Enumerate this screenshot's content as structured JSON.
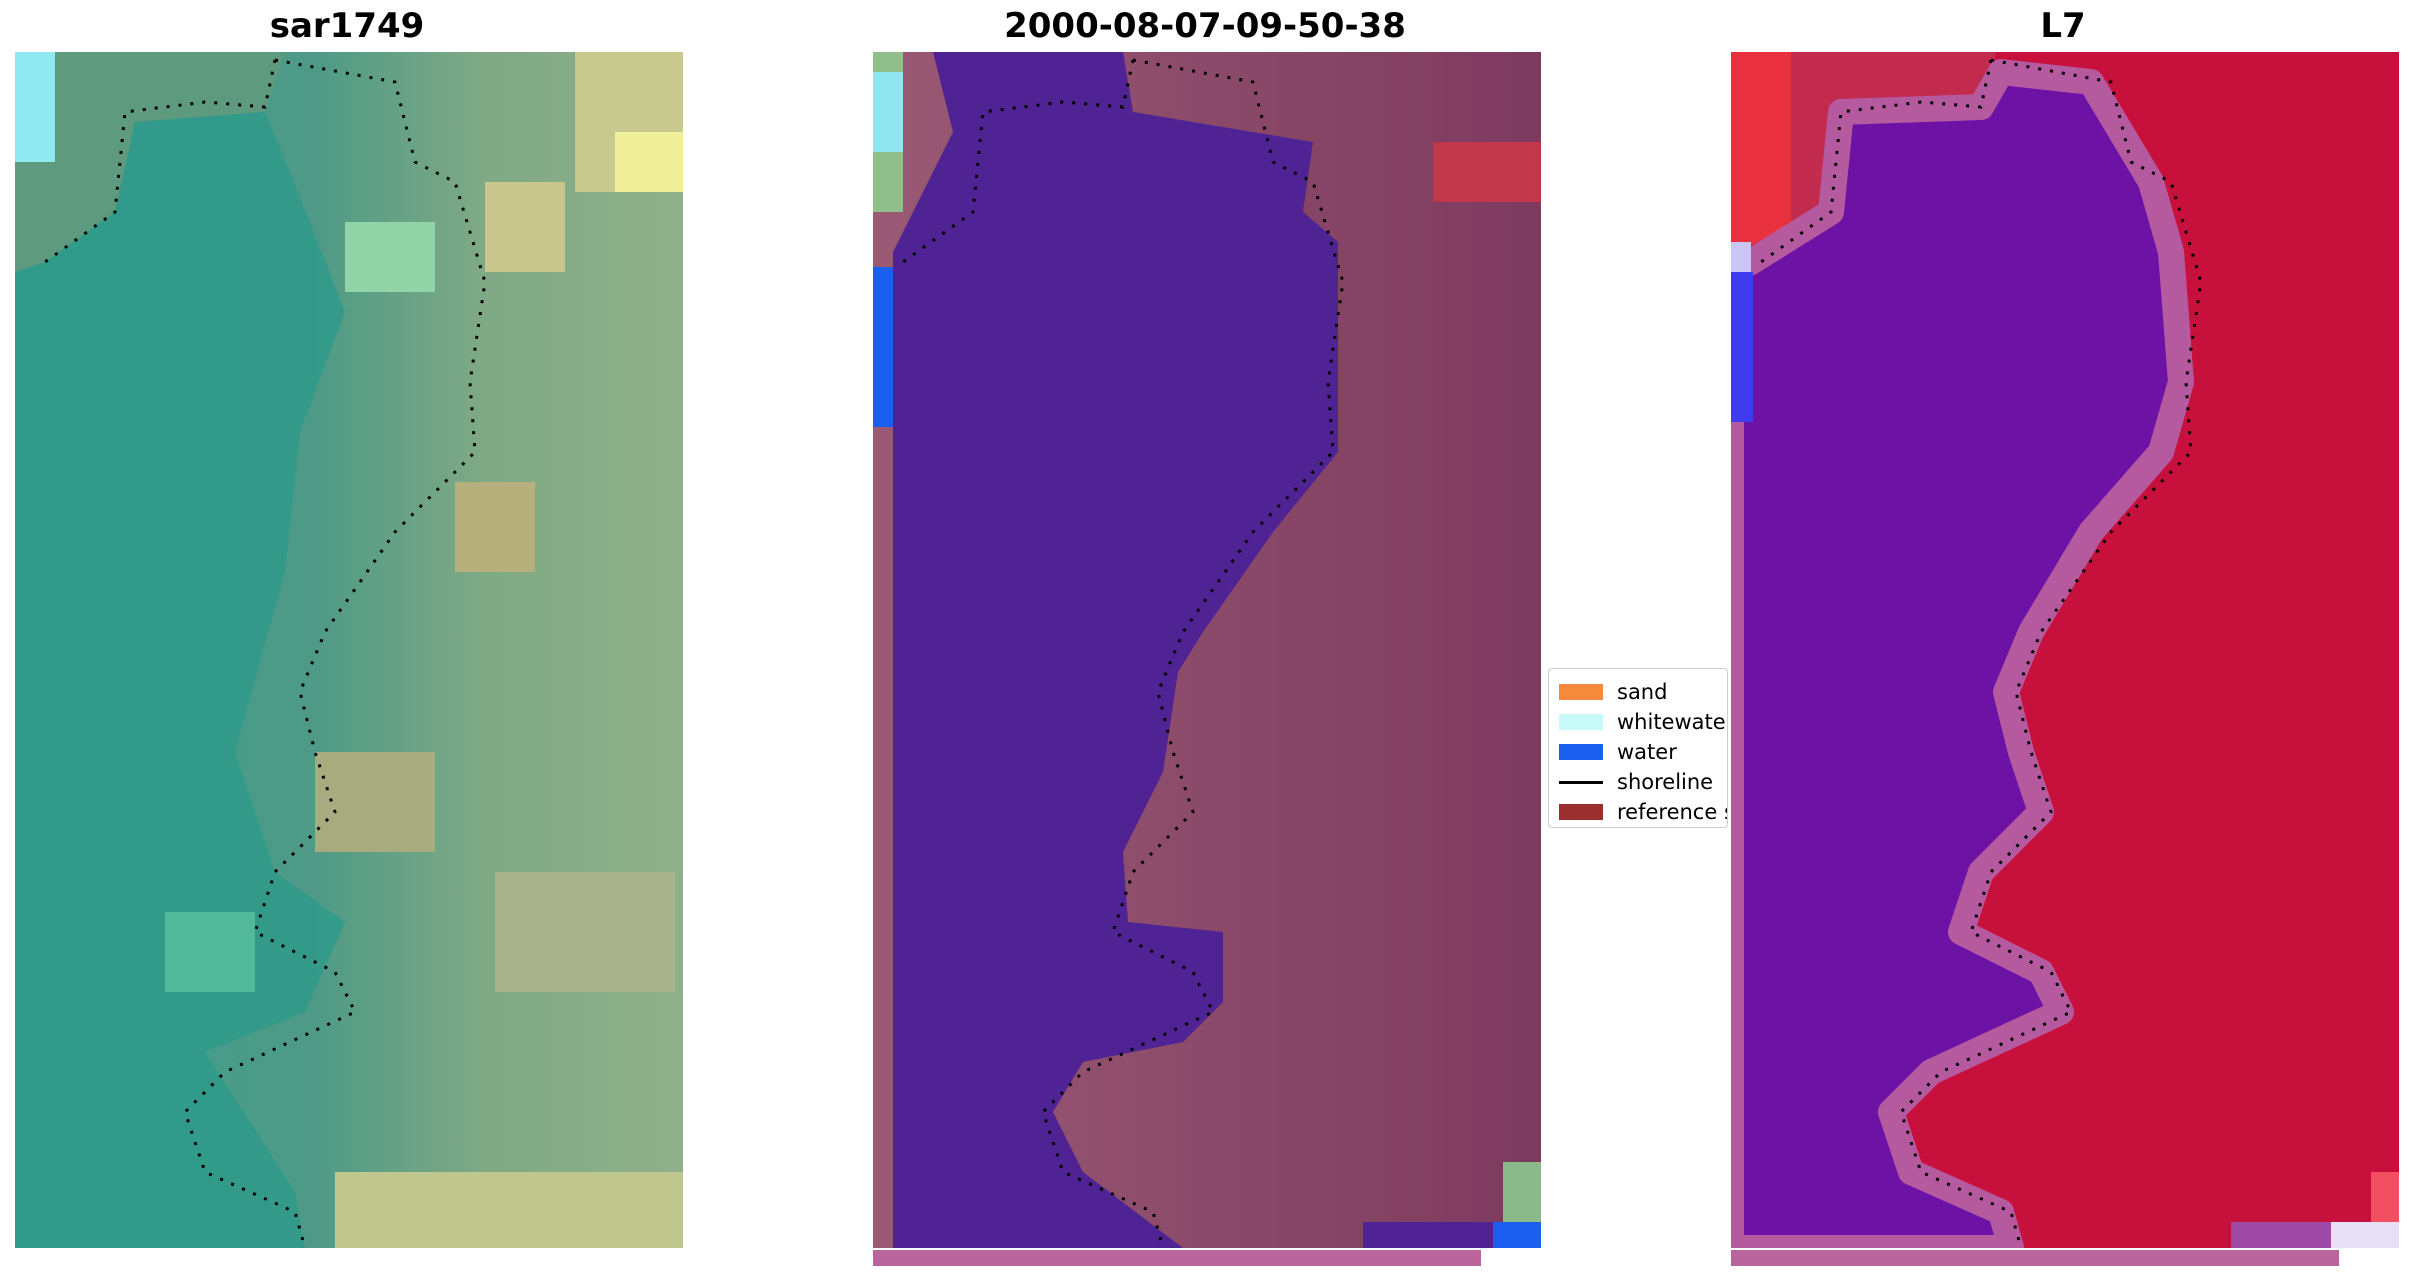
{
  "panels": [
    {
      "title": "sar1749"
    },
    {
      "title": "2000-08-07-09-50-38"
    },
    {
      "title": "L7"
    }
  ],
  "legend": {
    "items": [
      {
        "label": "sand",
        "color": "#f58a3c",
        "kind": "patch"
      },
      {
        "label": "whitewater",
        "color": "#c8fafa",
        "kind": "patch"
      },
      {
        "label": "water",
        "color": "#1a5ff0",
        "kind": "patch"
      },
      {
        "label": "shoreline",
        "color": "#000000",
        "kind": "line"
      },
      {
        "label": "reference shoreline buffer",
        "color": "#9b2f2f",
        "kind": "patch"
      }
    ]
  },
  "colors": {
    "water_class": "#4f2393",
    "land_tint": "#8f4b6e",
    "rgb_water": "#3a9b8c",
    "rgb_land": "#9bb48a",
    "index_water": "#6a10a8",
    "index_land": "#c8103c",
    "bottom_strip": "#b9649a",
    "shoreline_dots": "#000000"
  }
}
